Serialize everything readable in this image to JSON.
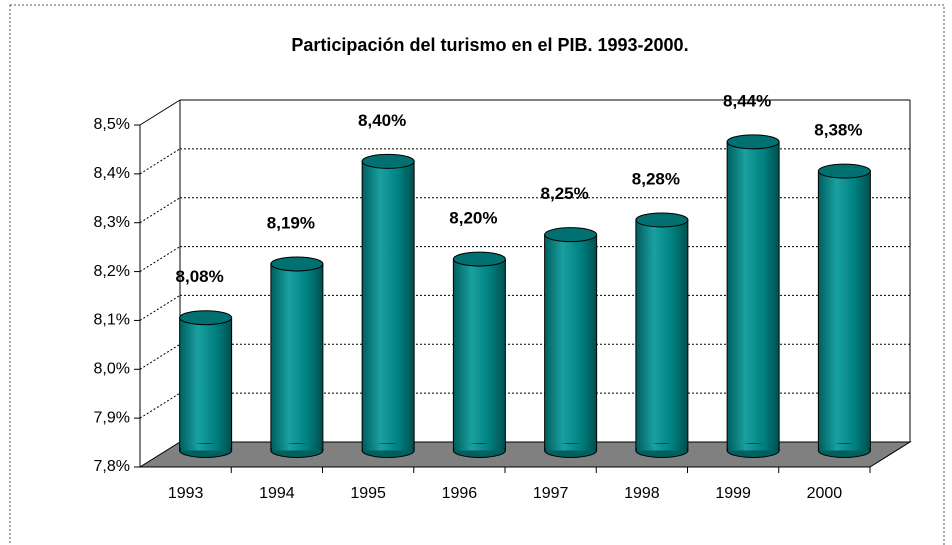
{
  "chart_data": {
    "type": "bar3d",
    "title": "Participación del turismo en el PIB. 1993-2000.",
    "categories": [
      "1993",
      "1994",
      "1995",
      "1996",
      "1997",
      "1998",
      "1999",
      "2000"
    ],
    "values": [
      8.08,
      8.19,
      8.4,
      8.2,
      8.25,
      8.28,
      8.44,
      8.38
    ],
    "value_labels": [
      "8,08%",
      "8,19%",
      "8,40%",
      "8,20%",
      "8,25%",
      "8,28%",
      "8,44%",
      "8,38%"
    ],
    "color": "#008080",
    "ylim": [
      7.8,
      8.5
    ],
    "yticks": [
      {
        "value": 7.8,
        "label": "7,8%"
      },
      {
        "value": 7.9,
        "label": "7,9%"
      },
      {
        "value": 8.0,
        "label": "8,0%"
      },
      {
        "value": 8.1,
        "label": "8,1%"
      },
      {
        "value": 8.2,
        "label": "8,2%"
      },
      {
        "value": 8.3,
        "label": "8,3%"
      },
      {
        "value": 8.4,
        "label": "8,4%"
      },
      {
        "value": 8.5,
        "label": "8,5%"
      }
    ],
    "grid": true
  }
}
